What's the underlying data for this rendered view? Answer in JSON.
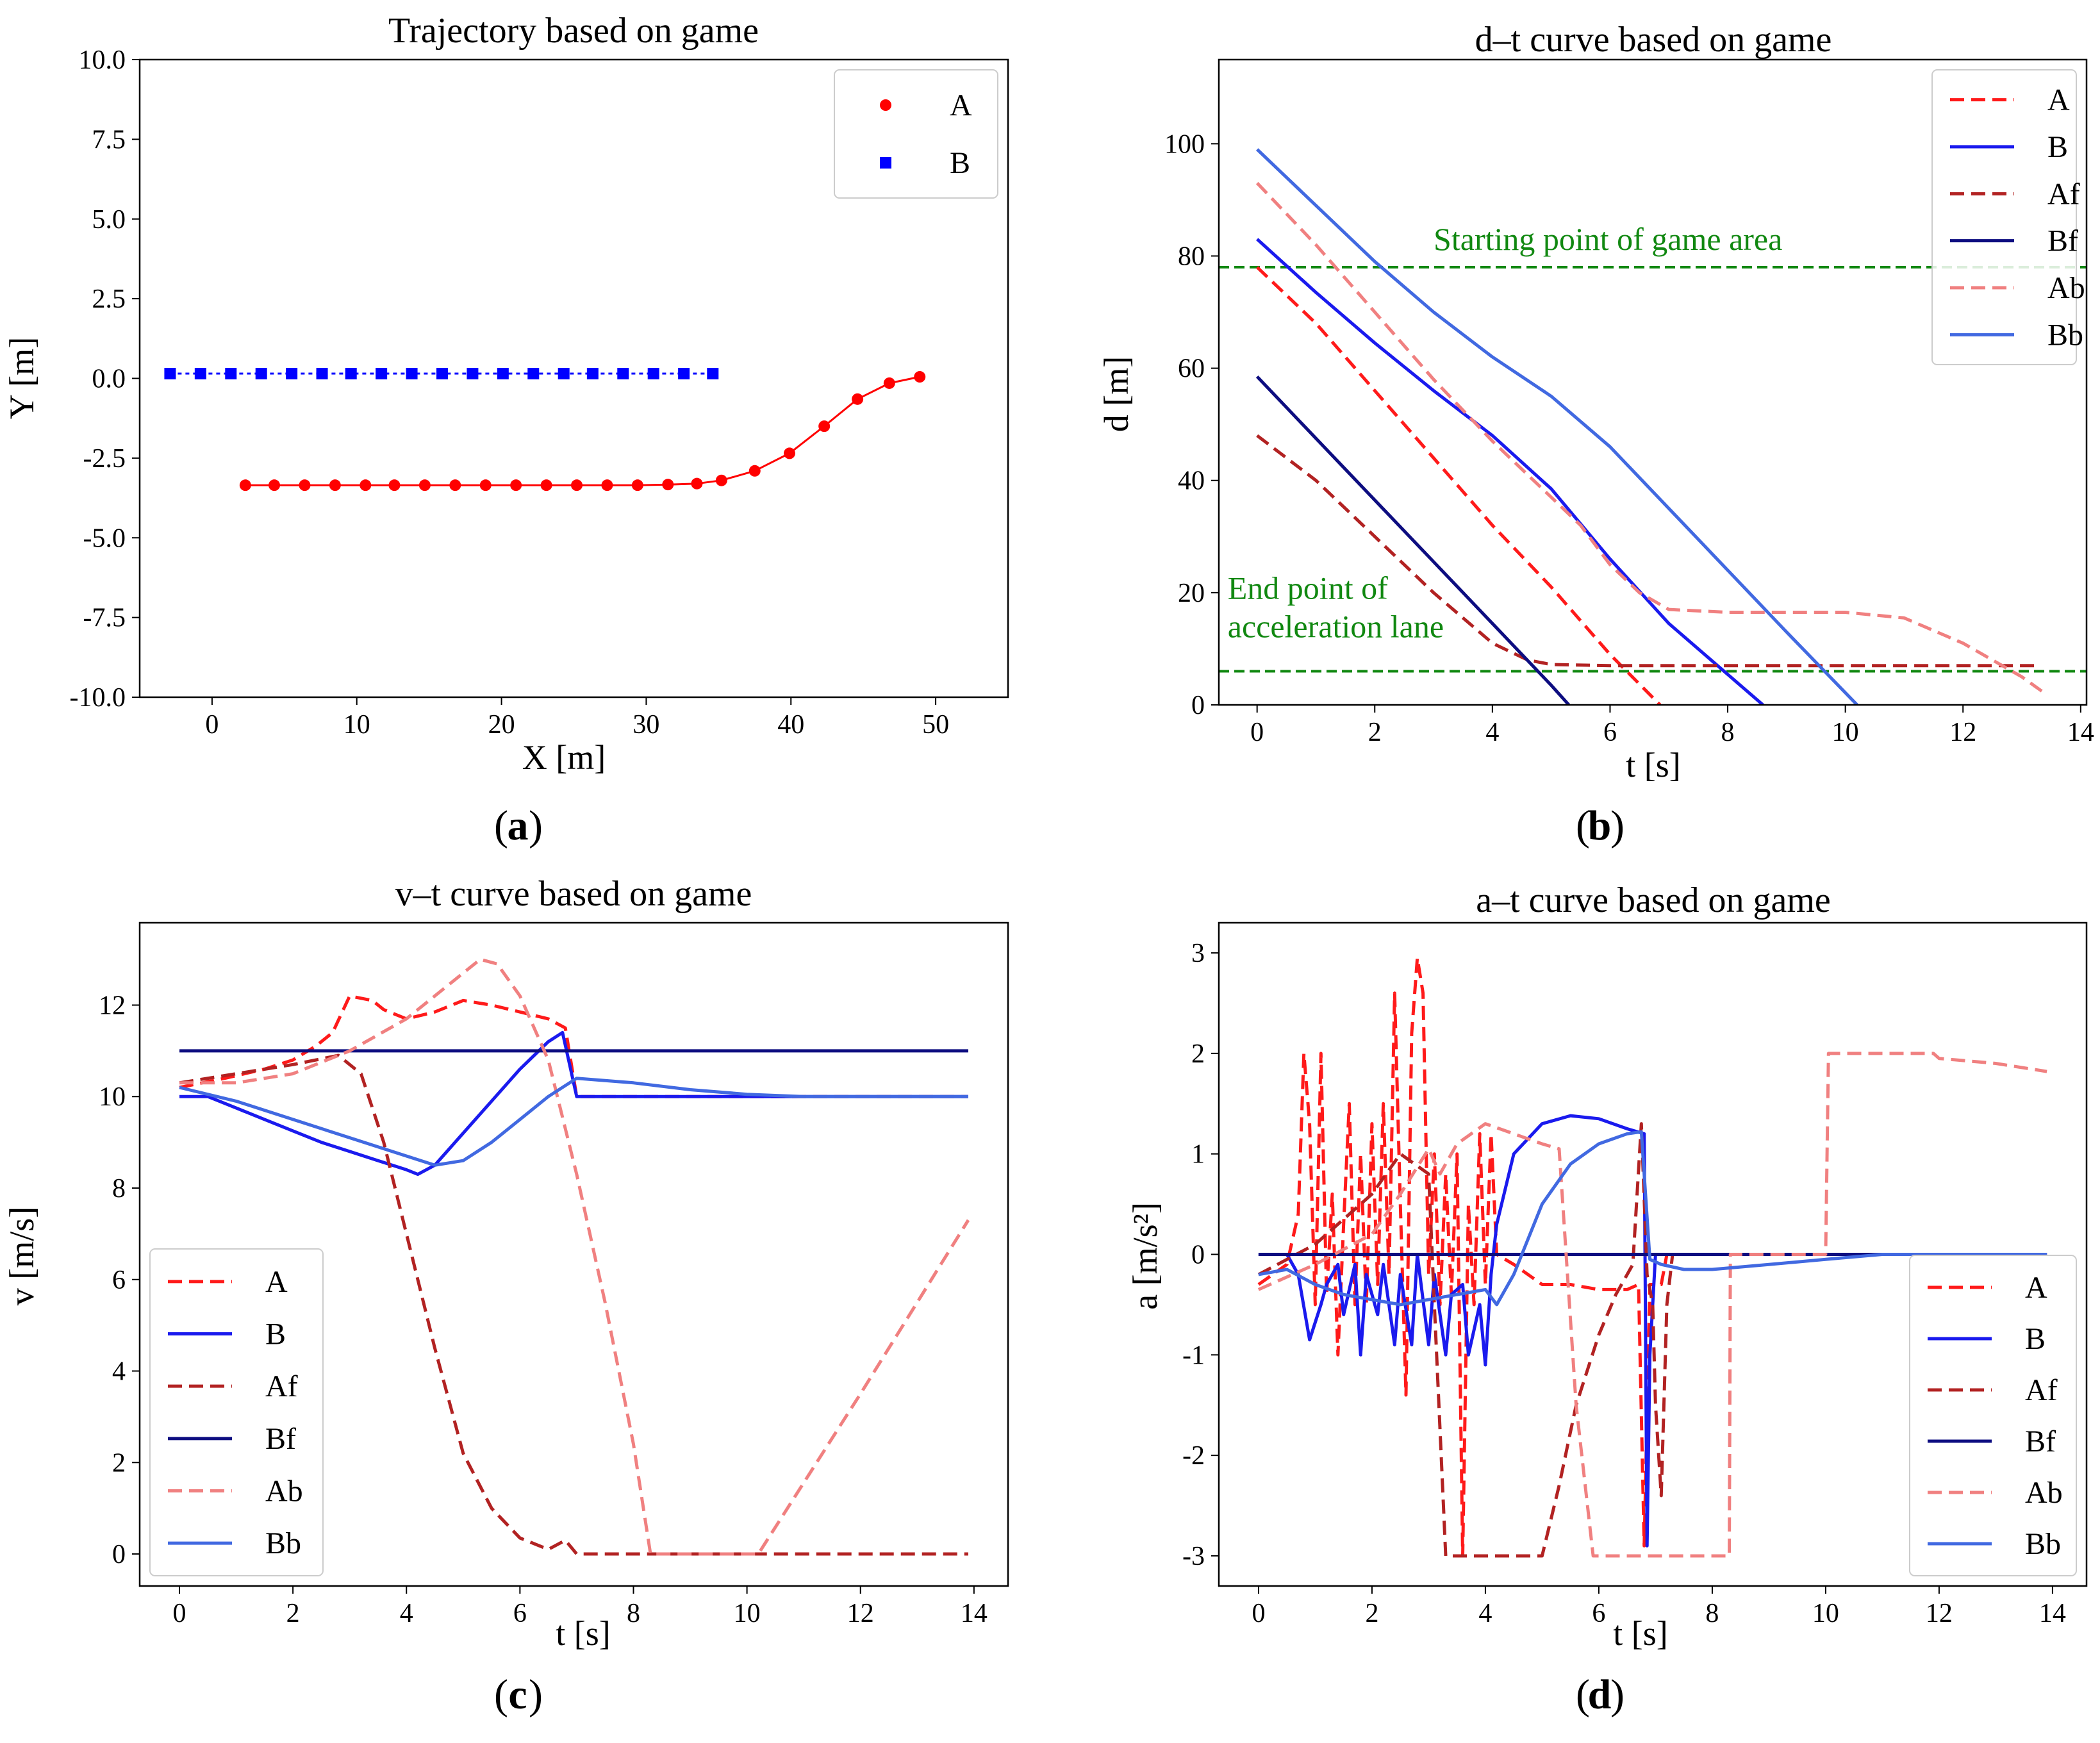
{
  "chart_data": [
    {
      "id": "a",
      "type": "scatter",
      "caption": "a",
      "title": "Trajectory based on game",
      "xlabel": "X [m]",
      "ylabel": "Y [m]",
      "xlim": [
        -5,
        55
      ],
      "ylim": [
        -10,
        10
      ],
      "xticks": [
        0,
        10,
        20,
        30,
        40,
        50
      ],
      "yticks": [
        10.0,
        7.5,
        5.0,
        2.5,
        0.0,
        -2.5,
        -5.0,
        -7.5,
        -10.0
      ],
      "ytick_labels": [
        "10.0",
        "7.5",
        "5.0",
        "2.5",
        "0.0",
        "-2.5",
        "-5.0",
        "-7.5",
        "-10.0"
      ],
      "grid": false,
      "legend": "top-right",
      "series": [
        {
          "name": "A",
          "color": "#ff0000",
          "marker": "circle",
          "line": true,
          "x": [
            2.3,
            4.3,
            6.4,
            8.5,
            10.6,
            12.6,
            14.7,
            16.8,
            18.9,
            21.0,
            23.1,
            25.2,
            27.3,
            29.4,
            31.5,
            33.5,
            35.2,
            37.5,
            39.9,
            42.3,
            44.6,
            46.8,
            48.9
          ],
          "y": [
            -3.35,
            -3.35,
            -3.35,
            -3.35,
            -3.35,
            -3.35,
            -3.35,
            -3.35,
            -3.35,
            -3.35,
            -3.35,
            -3.35,
            -3.35,
            -3.35,
            -3.33,
            -3.3,
            -3.2,
            -2.9,
            -2.35,
            -1.5,
            -0.65,
            -0.15,
            0.05
          ]
        },
        {
          "name": "B",
          "color": "#0000ff",
          "marker": "square",
          "line": true,
          "x": [
            -2.9,
            -0.8,
            1.3,
            3.4,
            5.5,
            7.6,
            9.6,
            11.7,
            13.8,
            15.9,
            18.0,
            20.1,
            22.2,
            24.3,
            26.3,
            28.4,
            30.5,
            32.6,
            34.6
          ],
          "y": [
            0.15,
            0.15,
            0.15,
            0.15,
            0.15,
            0.15,
            0.15,
            0.15,
            0.15,
            0.15,
            0.15,
            0.15,
            0.15,
            0.15,
            0.15,
            0.15,
            0.15,
            0.15,
            0.15
          ]
        }
      ]
    },
    {
      "id": "b",
      "type": "line",
      "caption": "b",
      "title": "d–t curve based on game",
      "xlabel": "t [s]",
      "ylabel": "d [m]",
      "xlim": [
        -0.65,
        14.1
      ],
      "ylim": [
        0,
        115
      ],
      "xticks": [
        0,
        2,
        4,
        6,
        8,
        10,
        12,
        14
      ],
      "yticks": [
        0,
        20,
        40,
        60,
        80,
        100
      ],
      "grid": false,
      "legend": "top-right",
      "hlines": [
        {
          "y": 78,
          "color": "#118811",
          "dash": true,
          "label": "Starting point of game area",
          "label_x": 3.0,
          "label_y": 79
        },
        {
          "y": 6,
          "color": "#118811",
          "dash": true,
          "label": "End point of acceleration lane",
          "label_x": -0.5,
          "label_y": 15
        }
      ],
      "series": [
        {
          "name": "A",
          "color": "#ff1a1a",
          "dash": true,
          "x": [
            0,
            1,
            2,
            3,
            4,
            5,
            6,
            6.85
          ],
          "y": [
            78,
            68,
            56,
            44,
            32,
            21,
            9,
            0
          ]
        },
        {
          "name": "B",
          "color": "#1a1aee",
          "dash": false,
          "x": [
            0,
            1,
            2,
            3,
            4,
            5,
            6,
            7,
            8.6
          ],
          "y": [
            83,
            73.5,
            64.5,
            56,
            48,
            38.5,
            26,
            14.5,
            0
          ]
        },
        {
          "name": "Af",
          "color": "#b22222",
          "dash": true,
          "x": [
            0,
            1,
            2,
            3,
            4,
            4.6,
            5,
            6,
            8,
            10,
            12,
            13.3
          ],
          "y": [
            48,
            40,
            30,
            20,
            11,
            8,
            7.2,
            7,
            7,
            7,
            7,
            7
          ]
        },
        {
          "name": "Bf",
          "color": "#0d0d80",
          "dash": false,
          "x": [
            0,
            1,
            2,
            3,
            4,
            5,
            5.3
          ],
          "y": [
            58.5,
            47.5,
            36.5,
            25.5,
            14.5,
            3.5,
            0
          ]
        },
        {
          "name": "Ab",
          "color": "#f08080",
          "dash": true,
          "x": [
            0,
            1,
            2,
            3,
            4,
            5,
            5.5,
            6,
            6.5,
            7,
            8,
            9,
            10,
            11,
            12,
            12.5,
            13,
            13.4
          ],
          "y": [
            93,
            82,
            70,
            58,
            47,
            37,
            32,
            25,
            20,
            17,
            16.5,
            16.5,
            16.5,
            15.5,
            11,
            8,
            5,
            2
          ]
        },
        {
          "name": "Bb",
          "color": "#4169e1",
          "dash": false,
          "x": [
            0,
            1,
            2,
            3,
            4,
            5,
            6,
            7,
            8,
            9,
            10.2
          ],
          "y": [
            99,
            89,
            79,
            70,
            62,
            55,
            46,
            35,
            24,
            13,
            0
          ]
        }
      ]
    },
    {
      "id": "c",
      "type": "line",
      "caption": "c",
      "title": "v–t curve based on game",
      "xlabel": "t [s]",
      "ylabel": "v [m/s]",
      "xlim": [
        -0.7,
        14.6
      ],
      "ylim": [
        -0.7,
        13.8
      ],
      "xticks": [
        0,
        2,
        4,
        6,
        8,
        10,
        12,
        14
      ],
      "yticks": [
        0,
        2,
        4,
        6,
        8,
        10,
        12
      ],
      "grid": false,
      "legend": "lower-left",
      "series": [
        {
          "name": "A",
          "color": "#ff1a1a",
          "dash": true,
          "x": [
            0,
            0.8,
            1.5,
            2,
            2.4,
            2.7,
            3,
            3.2,
            3.4,
            3.6,
            4,
            4.5,
            5,
            5.5,
            6,
            6.5,
            6.8,
            7,
            8,
            10,
            12,
            13.9
          ],
          "y": [
            10.2,
            10.4,
            10.6,
            10.8,
            11.1,
            11.4,
            12.2,
            12.15,
            12.1,
            11.9,
            11.7,
            11.85,
            12.1,
            12.0,
            11.85,
            11.7,
            11.5,
            10.0,
            10.0,
            10.0,
            10.0,
            10.0
          ]
        },
        {
          "name": "B",
          "color": "#1a1aee",
          "dash": false,
          "x": [
            0,
            0.5,
            1,
            1.5,
            2,
            2.5,
            3,
            3.5,
            4,
            4.2,
            4.5,
            5,
            5.5,
            6,
            6.5,
            6.75,
            7,
            8,
            10,
            12,
            13.9
          ],
          "y": [
            10.0,
            10.0,
            9.75,
            9.5,
            9.25,
            9.0,
            8.8,
            8.6,
            8.4,
            8.3,
            8.5,
            9.2,
            9.9,
            10.6,
            11.2,
            11.4,
            10.0,
            10.0,
            10.0,
            10.0,
            10.0
          ]
        },
        {
          "name": "Af",
          "color": "#b22222",
          "dash": true,
          "x": [
            0,
            1,
            2,
            2.8,
            3.2,
            3.6,
            4,
            4.5,
            5,
            5.5,
            6,
            6.5,
            6.8,
            7,
            8,
            10,
            12,
            13.9
          ],
          "y": [
            10.3,
            10.5,
            10.7,
            10.9,
            10.5,
            9.0,
            7.0,
            4.5,
            2.2,
            1.0,
            0.35,
            0.1,
            0.3,
            0.0,
            0.0,
            0.0,
            0.0,
            0.0
          ]
        },
        {
          "name": "Bf",
          "color": "#0d0d80",
          "dash": false,
          "x": [
            0,
            13.9
          ],
          "y": [
            11.0,
            11.0
          ]
        },
        {
          "name": "Ab",
          "color": "#f08080",
          "dash": true,
          "x": [
            0,
            1,
            2,
            3,
            4,
            4.5,
            5,
            5.3,
            5.6,
            6,
            6.5,
            7,
            7.5,
            8,
            8.3,
            10.2,
            12,
            13.9
          ],
          "y": [
            10.3,
            10.3,
            10.5,
            11.0,
            11.7,
            12.2,
            12.7,
            13.0,
            12.9,
            12.2,
            10.8,
            8.3,
            5.5,
            2.4,
            0.0,
            0.0,
            3.5,
            7.3
          ]
        },
        {
          "name": "Bb",
          "color": "#4169e1",
          "dash": false,
          "x": [
            0,
            1,
            2,
            3,
            4,
            4.5,
            5,
            5.5,
            6,
            6.5,
            7,
            8,
            9,
            10,
            11,
            12,
            13,
            13.9
          ],
          "y": [
            10.2,
            9.9,
            9.5,
            9.1,
            8.7,
            8.5,
            8.6,
            9.0,
            9.5,
            10.0,
            10.4,
            10.3,
            10.15,
            10.05,
            10.0,
            10.0,
            10.0,
            10.0
          ]
        }
      ]
    },
    {
      "id": "d",
      "type": "line",
      "caption": "d",
      "title": "a–t curve based on game",
      "xlabel": "t [s]",
      "ylabel": "a [m/s²]",
      "xlim": [
        -0.7,
        14.6
      ],
      "ylim": [
        -3.3,
        3.3
      ],
      "xticks": [
        0,
        2,
        4,
        6,
        8,
        10,
        12,
        14
      ],
      "yticks": [
        3,
        2,
        1,
        0,
        -1,
        -2,
        -3
      ],
      "grid": false,
      "legend": "lower-right",
      "series": [
        {
          "name": "A",
          "color": "#ff1a1a",
          "dash": true,
          "x": [
            0,
            0.5,
            0.7,
            0.8,
            0.9,
            1.0,
            1.1,
            1.2,
            1.3,
            1.4,
            1.5,
            1.6,
            1.7,
            1.8,
            1.9,
            2.0,
            2.1,
            2.2,
            2.3,
            2.4,
            2.5,
            2.6,
            2.7,
            2.8,
            2.9,
            3.0,
            3.1,
            3.2,
            3.3,
            3.4,
            3.5,
            3.6,
            3.7,
            3.8,
            3.9,
            4.0,
            4.1,
            4.2,
            4.5,
            5.0,
            5.5,
            6.0,
            6.5,
            6.7,
            6.8,
            6.9,
            7.0,
            7.1,
            7.2
          ],
          "y": [
            -0.3,
            -0.1,
            0.4,
            2.0,
            1.3,
            -0.5,
            2.0,
            -0.4,
            0.6,
            -1.0,
            0.3,
            1.5,
            -0.5,
            1.0,
            -0.5,
            1.3,
            -0.3,
            1.5,
            -0.2,
            2.6,
            0.5,
            -1.4,
            2.2,
            2.95,
            2.6,
            -0.2,
            1.0,
            -0.5,
            0.8,
            -0.4,
            1.0,
            -3.0,
            0.5,
            -0.5,
            1.2,
            -0.3,
            1.2,
            0.0,
            -0.1,
            -0.3,
            -0.3,
            -0.35,
            -0.35,
            -0.3,
            -2.9,
            -0.3,
            -0.3,
            -0.3,
            0.0
          ]
        },
        {
          "name": "B",
          "color": "#1a1aee",
          "dash": false,
          "x": [
            0,
            0.5,
            0.7,
            0.9,
            1.1,
            1.2,
            1.4,
            1.5,
            1.7,
            1.8,
            1.9,
            2.1,
            2.2,
            2.4,
            2.5,
            2.7,
            2.8,
            3.0,
            3.1,
            3.3,
            3.4,
            3.6,
            3.7,
            3.9,
            4.0,
            4.1,
            4.2,
            4.5,
            5.0,
            5.5,
            6.0,
            6.5,
            6.8,
            6.85,
            6.9,
            7.0,
            8.0,
            10.0,
            12.0,
            13.9
          ],
          "y": [
            0.0,
            0.0,
            -0.2,
            -0.85,
            -0.5,
            -0.3,
            -0.1,
            -0.6,
            -0.1,
            -1.0,
            -0.2,
            -0.6,
            -0.1,
            -0.9,
            -0.2,
            -0.9,
            0.0,
            -0.9,
            -0.2,
            -1.0,
            -0.4,
            -0.3,
            -1.0,
            -0.5,
            -1.1,
            -0.2,
            0.3,
            1.0,
            1.3,
            1.38,
            1.35,
            1.25,
            1.2,
            -2.9,
            -1.0,
            0.0,
            0.0,
            0.0,
            0.0,
            0.0
          ]
        },
        {
          "name": "Af",
          "color": "#b22222",
          "dash": true,
          "x": [
            0,
            1,
            2,
            2.5,
            3.0,
            3.1,
            3.3,
            3.6,
            4.0,
            4.5,
            5.0,
            5.3,
            5.6,
            6.0,
            6.3,
            6.6,
            6.75,
            6.85,
            6.95,
            7.0,
            7.1,
            7.2,
            7.3,
            8,
            10,
            12,
            13.9
          ],
          "y": [
            -0.2,
            0.1,
            0.6,
            1.0,
            0.8,
            -0.5,
            -3.0,
            -3.0,
            -3.0,
            -3.0,
            -3.0,
            -2.3,
            -1.5,
            -0.8,
            -0.4,
            -0.1,
            1.3,
            -0.2,
            -0.5,
            -1.5,
            -2.4,
            -0.5,
            0.0,
            0.0,
            0.0,
            0.0,
            0.0
          ]
        },
        {
          "name": "Bf",
          "color": "#0d0d80",
          "dash": false,
          "x": [
            0,
            13.9
          ],
          "y": [
            0.0,
            0.0
          ]
        },
        {
          "name": "Ab",
          "color": "#f08080",
          "dash": true,
          "x": [
            0,
            1,
            2,
            2.5,
            3.0,
            3.2,
            3.5,
            4.0,
            4.5,
            5.0,
            5.3,
            5.6,
            5.9,
            6.3,
            6.8,
            7.5,
            8.0,
            8.3,
            8.32,
            9.0,
            10.0,
            10.05,
            11.0,
            11.9,
            12.0,
            13.0,
            13.9
          ],
          "y": [
            -0.35,
            -0.1,
            0.2,
            0.6,
            1.05,
            0.8,
            1.1,
            1.3,
            1.2,
            1.1,
            1.05,
            -1.5,
            -3.0,
            -3.0,
            -3.0,
            -3.0,
            -3.0,
            -3.0,
            0.0,
            0.0,
            0.0,
            2.0,
            2.0,
            2.0,
            1.95,
            1.9,
            1.82
          ]
        },
        {
          "name": "Bb",
          "color": "#4169e1",
          "dash": false,
          "x": [
            0,
            0.5,
            1,
            1.5,
            2,
            2.5,
            3,
            3.5,
            4.0,
            4.2,
            4.5,
            5.0,
            5.5,
            6.0,
            6.5,
            6.75,
            6.9,
            7.1,
            7.5,
            8.0,
            9.0,
            10.0,
            11.0,
            12.0,
            13.9
          ],
          "y": [
            -0.2,
            -0.15,
            -0.3,
            -0.4,
            -0.45,
            -0.5,
            -0.45,
            -0.4,
            -0.35,
            -0.5,
            -0.2,
            0.5,
            0.9,
            1.1,
            1.2,
            1.22,
            -0.05,
            -0.1,
            -0.15,
            -0.15,
            -0.1,
            -0.05,
            0.0,
            0.0,
            0.0
          ]
        }
      ]
    }
  ]
}
